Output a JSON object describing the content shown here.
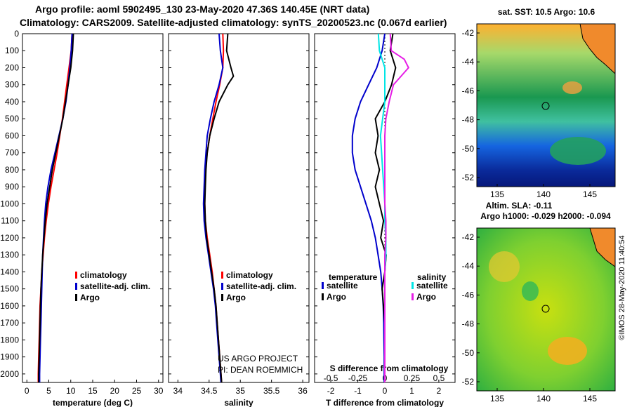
{
  "header": {
    "line1": "Argo profile: aoml 5902495_130 23-May-2020 47.36S 140.45E (NRT data)",
    "line2": "Climatology: CARS2009. Satellite-adjusted climatology: synTS_20200523.nc (0.067d earlier)"
  },
  "maps": {
    "top_title": "sat. SST: 10.5 Argo: 10.6",
    "sla_label": "Altim. SLA: -0.11",
    "bottom_title": "Argo h1000: -0.029 h2000: -0.094",
    "credit": "©IMOS 28-May-2020 11:40:54",
    "lat_ticks": [
      "-42",
      "-44",
      "-46",
      "-48",
      "-50",
      "-52"
    ],
    "lon_ticks": [
      "135",
      "140",
      "145"
    ]
  },
  "chart_data": [
    {
      "type": "line",
      "xlabel": "temperature (deg C)",
      "ylabel": "",
      "xlim": [
        -1,
        31
      ],
      "ylim": [
        2050,
        0
      ],
      "x_ticks": [
        "0",
        "5",
        "10",
        "15",
        "20",
        "25",
        "30"
      ],
      "y_ticks": [
        "0",
        "100",
        "200",
        "300",
        "400",
        "500",
        "600",
        "700",
        "800",
        "900",
        "1000",
        "1100",
        "1200",
        "1300",
        "1400",
        "1500",
        "1600",
        "1700",
        "1800",
        "1900",
        "2000"
      ],
      "legend": [
        "climatology",
        "satellite-adj. clim.",
        "Argo"
      ],
      "series": [
        {
          "name": "climatology",
          "color": "#ff0000",
          "depth": [
            0,
            100,
            200,
            300,
            400,
            500,
            600,
            700,
            800,
            900,
            1000,
            1100,
            1200,
            1300,
            1400,
            1500,
            1600,
            1700,
            1800,
            1900,
            2000,
            2050
          ],
          "values": [
            10.3,
            10.1,
            9.6,
            9.1,
            8.6,
            8.1,
            7.5,
            6.9,
            6.2,
            5.5,
            4.9,
            4.4,
            4.0,
            3.7,
            3.4,
            3.2,
            3.0,
            2.9,
            2.8,
            2.7,
            2.6,
            2.6
          ]
        },
        {
          "name": "satellite-adj. clim.",
          "color": "#0000cc",
          "depth": [
            0,
            100,
            200,
            300,
            400,
            500,
            600,
            700,
            800,
            900,
            1000,
            1100,
            1200,
            1300,
            1400,
            1500,
            1600,
            1700,
            1800,
            1900,
            2000,
            2050
          ],
          "values": [
            10.3,
            10.1,
            9.8,
            9.4,
            8.9,
            8.2,
            7.3,
            6.4,
            5.5,
            4.8,
            4.3,
            4.0,
            3.8,
            3.6,
            3.5,
            3.4,
            3.3,
            3.2,
            3.1,
            3.0,
            2.9,
            2.9
          ]
        },
        {
          "name": "Argo",
          "color": "#000000",
          "depth": [
            0,
            100,
            200,
            300,
            400,
            500,
            600,
            700,
            800,
            900,
            1000,
            1100,
            1200,
            1300,
            1400,
            1500,
            1600,
            1700,
            1800,
            1900,
            2000,
            2050
          ],
          "values": [
            10.6,
            10.4,
            10.0,
            9.4,
            8.8,
            8.2,
            7.4,
            6.6,
            5.8,
            5.2,
            4.6,
            4.2,
            3.9,
            3.6,
            3.4,
            3.2,
            3.1,
            3.0,
            2.9,
            2.8,
            2.7,
            2.7
          ]
        }
      ]
    },
    {
      "type": "line",
      "xlabel": "salinity",
      "xlim": [
        33.85,
        36.1
      ],
      "ylim": [
        2050,
        0
      ],
      "x_ticks": [
        "34",
        "34.5",
        "35",
        "35.5",
        "36"
      ],
      "legend": [
        "climatology",
        "satellite-adj. clim.",
        "Argo"
      ],
      "annotations": [
        "US ARGO PROJECT",
        "PI: DEAN ROEMMICH"
      ],
      "series": [
        {
          "name": "climatology",
          "color": "#ff0000",
          "depth": [
            0,
            100,
            200,
            300,
            400,
            500,
            600,
            700,
            800,
            900,
            1000,
            1100,
            1200,
            1300,
            1400,
            1500,
            1600,
            1700,
            1800,
            1900,
            2000,
            2050
          ],
          "values": [
            34.72,
            34.73,
            34.72,
            34.67,
            34.61,
            34.56,
            34.51,
            34.47,
            34.44,
            34.43,
            34.43,
            34.44,
            34.47,
            34.51,
            34.55,
            34.58,
            34.61,
            34.63,
            34.65,
            34.67,
            34.69,
            34.7
          ]
        },
        {
          "name": "satellite-adj. clim.",
          "color": "#0000cc",
          "depth": [
            0,
            100,
            200,
            300,
            400,
            500,
            600,
            700,
            800,
            900,
            1000,
            1100,
            1200,
            1300,
            1400,
            1500,
            1600,
            1700,
            1800,
            1900,
            2000,
            2050
          ],
          "values": [
            34.66,
            34.68,
            34.72,
            34.66,
            34.58,
            34.52,
            34.47,
            34.45,
            34.43,
            34.42,
            34.41,
            34.42,
            34.45,
            34.49,
            34.53,
            34.57,
            34.6,
            34.62,
            34.64,
            34.66,
            34.68,
            34.69
          ]
        },
        {
          "name": "Argo",
          "color": "#000000",
          "depth": [
            0,
            100,
            200,
            250,
            300,
            400,
            500,
            600,
            700,
            800,
            900,
            1000,
            1100,
            1200,
            1300,
            1400,
            1500,
            1600,
            1700,
            1800,
            1900,
            2000,
            2050
          ],
          "values": [
            34.8,
            34.78,
            34.85,
            34.89,
            34.8,
            34.66,
            34.58,
            34.51,
            34.47,
            34.45,
            34.44,
            34.43,
            34.44,
            34.46,
            34.5,
            34.54,
            34.58,
            34.61,
            34.63,
            34.65,
            34.67,
            34.69,
            34.7
          ]
        }
      ]
    },
    {
      "type": "line",
      "xlabel": "T difference from climatology",
      "top_label": "S difference from climatology",
      "xlim": [
        -2.6,
        2.6
      ],
      "ylim": [
        2050,
        0
      ],
      "x_ticks": [
        "-2",
        "-1",
        "0",
        "1",
        "2"
      ],
      "top_ticks": [
        "-0.5",
        "-0.25",
        "0",
        "0.25",
        "0.5"
      ],
      "legend_headers": [
        "temperature",
        "salinity"
      ],
      "legend": [
        "satellite",
        "Argo",
        "satellite",
        "Argo"
      ],
      "series": [
        {
          "name": "satellite",
          "color": "#0000cc",
          "depth": [
            0,
            100,
            200,
            300,
            400,
            500,
            600,
            700,
            800,
            900,
            1000,
            1100,
            1200,
            1300,
            1400,
            1500,
            1600,
            1700,
            1800,
            1900,
            2000,
            2050
          ],
          "values": [
            0.0,
            -0.1,
            -0.3,
            -0.6,
            -0.9,
            -1.1,
            -1.2,
            -1.2,
            -1.1,
            -0.9,
            -0.7,
            -0.5,
            -0.35,
            -0.25,
            -0.15,
            -0.1,
            -0.06,
            -0.04,
            -0.03,
            -0.02,
            -0.02,
            -0.02
          ]
        },
        {
          "name": "Argo",
          "color": "#000000",
          "depth": [
            0,
            100,
            200,
            300,
            400,
            500,
            600,
            700,
            800,
            900,
            1000,
            1100,
            1200,
            1300,
            1400,
            1500,
            1600,
            1700,
            1800,
            1900,
            2000,
            2050
          ],
          "values": [
            0.3,
            0.2,
            0.4,
            0.25,
            0.0,
            -0.35,
            -0.25,
            -0.35,
            -0.2,
            -0.35,
            -0.2,
            -0.05,
            -0.15,
            0.05,
            0.0,
            -0.1,
            -0.05,
            0.0,
            0.0,
            0.0,
            0.0,
            0.0
          ]
        },
        {
          "name": "satellite",
          "color": "#00e5e5",
          "depth": [
            0,
            100,
            200,
            300,
            400,
            500,
            600,
            700,
            800,
            900,
            1000,
            1100,
            1200,
            1300,
            1400,
            1500,
            1600,
            1700,
            1800,
            1900,
            2000,
            2050
          ],
          "values": [
            -0.06,
            -0.05,
            0.0,
            0.0,
            0.0,
            -0.02,
            -0.04,
            -0.03,
            -0.02,
            -0.01,
            0.0,
            0.0,
            0.01,
            0.01,
            0.0,
            0.0,
            0.0,
            0.0,
            0.0,
            0.0,
            0.0,
            0.0
          ]
        },
        {
          "name": "Argo",
          "color": "#e61ee6",
          "depth": [
            0,
            100,
            150,
            200,
            250,
            300,
            400,
            500,
            600,
            700,
            800,
            900,
            1000,
            1100,
            1200,
            1300,
            1400,
            1500,
            1600,
            1700,
            1800,
            1900,
            2000,
            2050
          ],
          "values": [
            0.05,
            0.06,
            0.18,
            0.22,
            0.15,
            0.08,
            0.04,
            0.01,
            0.0,
            0.0,
            0.0,
            0.0,
            0.0,
            0.01,
            0.01,
            0.0,
            0.0,
            0.0,
            0.0,
            0.0,
            0.0,
            0.0,
            0.0,
            0.0
          ]
        }
      ]
    }
  ]
}
